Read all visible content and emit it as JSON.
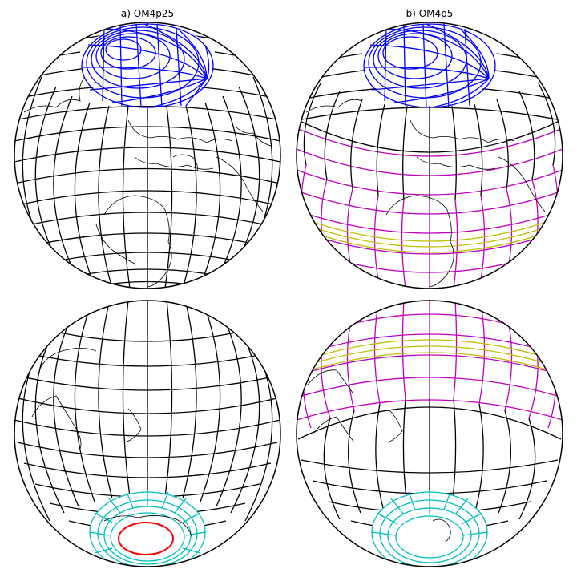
{
  "panels": [
    {
      "id": "a",
      "title": "a)  OM4p25"
    },
    {
      "id": "b",
      "title": "b)  OM4p5"
    }
  ],
  "colors": {
    "background": "#ffffff",
    "outline": "#000000",
    "grid_main": "#000000",
    "grid_north": "#0000ff",
    "grid_south_ring": "#00bfbf",
    "grid_south_inner": "#ff0000",
    "grid_equatorial_band": "#bf00bf",
    "grid_equatorial_refinement": "#bfbf00",
    "coastline": "#000000"
  },
  "globes": [
    {
      "view": "northern",
      "grid": "OM4p25",
      "regions": [
        "tripolar-north",
        "mercator"
      ]
    },
    {
      "view": "northern",
      "grid": "OM4p5",
      "regions": [
        "tripolar-north",
        "mercator",
        "equatorial-band",
        "equatorial-refinement"
      ]
    },
    {
      "view": "southern",
      "grid": "OM4p25",
      "regions": [
        "mercator",
        "south-polar-ring",
        "south-polar-inner"
      ]
    },
    {
      "view": "southern",
      "grid": "OM4p5",
      "regions": [
        "equatorial-band",
        "equatorial-refinement",
        "mercator",
        "south-polar-ring"
      ]
    }
  ]
}
